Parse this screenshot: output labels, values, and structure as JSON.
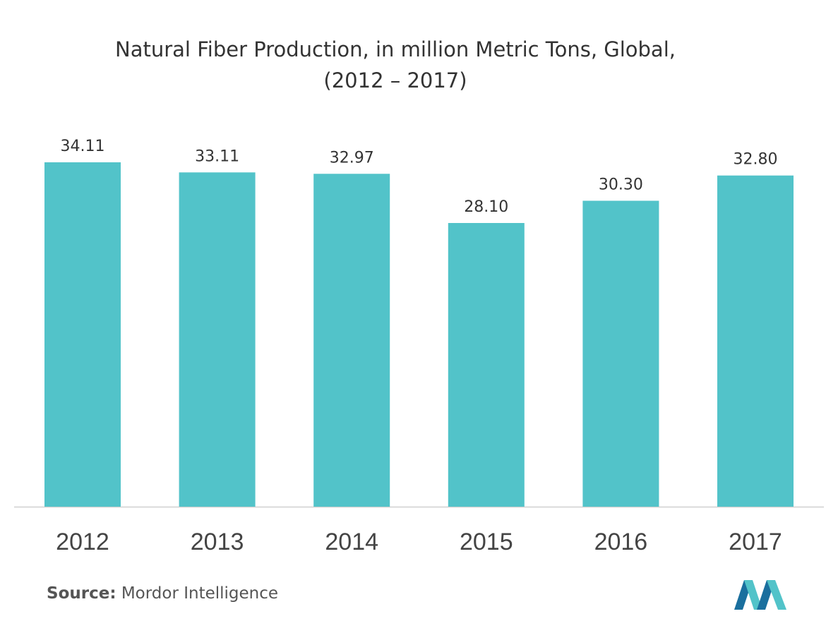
{
  "chart_data": {
    "type": "bar",
    "title": "Natural Fiber Production, in million Metric Tons, Global,",
    "subtitle": "(2012 – 2017)",
    "categories": [
      "2012",
      "2013",
      "2014",
      "2015",
      "2016",
      "2017"
    ],
    "values": [
      34.11,
      33.11,
      32.97,
      28.1,
      30.3,
      32.8
    ],
    "value_labels": [
      "34.11",
      "33.11",
      "32.97",
      "28.10",
      "30.30",
      "32.80"
    ],
    "ylim": [
      0,
      34.11
    ],
    "grid": false,
    "legend": "none",
    "bar_color": "#52c3c9"
  },
  "footer": {
    "source_label": "Source:",
    "source_text": "Mordor Intelligence"
  },
  "colors": {
    "bar": "#52c3c9",
    "axis": "#d0d0d0",
    "text": "#333333",
    "logo_dark": "#1a6f9e",
    "logo_light": "#52c3c9"
  },
  "logo": {
    "icon": "mordor-intelligence-logo-icon"
  }
}
